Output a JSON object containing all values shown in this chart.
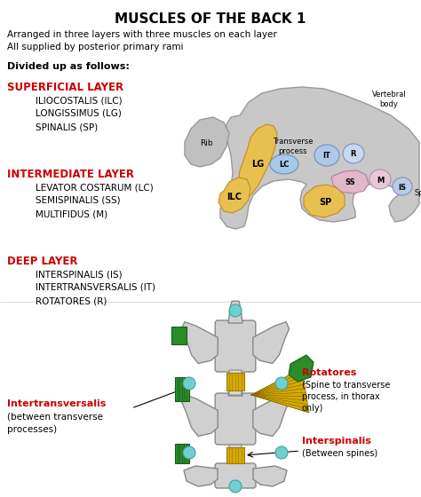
{
  "title": "MUSCLES OF THE BACK 1",
  "subtitle1": "Arranged in three layers with three muscles on each layer",
  "subtitle2": "All supplied by posterior primary rami",
  "divided_label": "Divided up as follows:",
  "layers": [
    {
      "name": "SUPERFICIAL LAYER",
      "muscles": [
        "ILIOCOSTALIS (ILC)",
        "LONGISSIMUS (LG)",
        "SPINALIS (SP)"
      ]
    },
    {
      "name": "INTERMEDIATE LAYER",
      "muscles": [
        "LEVATOR COSTARUM (LC)",
        "SEMISPINALIS (SS)",
        "MULTIFIDUS (M)"
      ]
    },
    {
      "name": "DEEP LAYER",
      "muscles": [
        "INTERSPINALIS (IS)",
        "INTERTRANSVERSALIS (IT)",
        "ROTATORES (R)"
      ]
    }
  ],
  "layer_color": "#cc0000",
  "bg_color": "#ffffff"
}
